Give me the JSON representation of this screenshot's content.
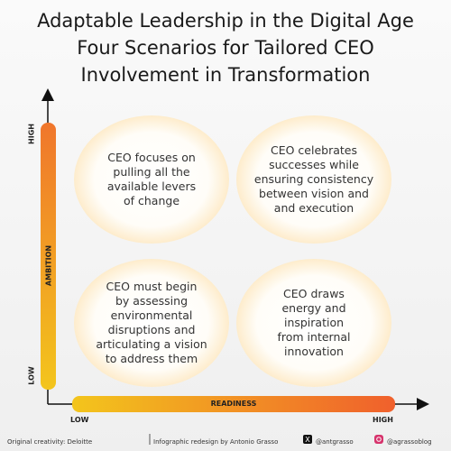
{
  "title": {
    "lines": [
      "Adaptable Leadership in the Digital Age",
      "Four Scenarios for Tailored CEO",
      "Involvement in Transformation"
    ]
  },
  "y_axis": {
    "name": "AMBITION",
    "high": "HIGH",
    "low": "LOW"
  },
  "x_axis": {
    "name": "READINESS",
    "low": "LOW",
    "high": "HIGH"
  },
  "quadrants": [
    {
      "lines": [
        "CEO focuses on",
        "pulling all the",
        "available levers",
        "of change"
      ]
    },
    {
      "lines": [
        "CEO celebrates",
        "successes while",
        "ensuring consistency",
        "between vision and",
        "and execution"
      ]
    },
    {
      "lines": [
        "CEO must begin",
        "by assessing",
        "environmental",
        "disruptions and",
        "articulating a vision",
        "to address them"
      ]
    },
    {
      "lines": [
        "CEO draws",
        "energy and",
        "inspiration",
        "from internal",
        "innovation"
      ]
    }
  ],
  "footer": {
    "credit": "Original creativity: Deloitte",
    "redesign": "Infographic redesign by Antonio Grasso",
    "x_handle": "@antgrasso",
    "instagram_handle": "@agrassoblog"
  }
}
